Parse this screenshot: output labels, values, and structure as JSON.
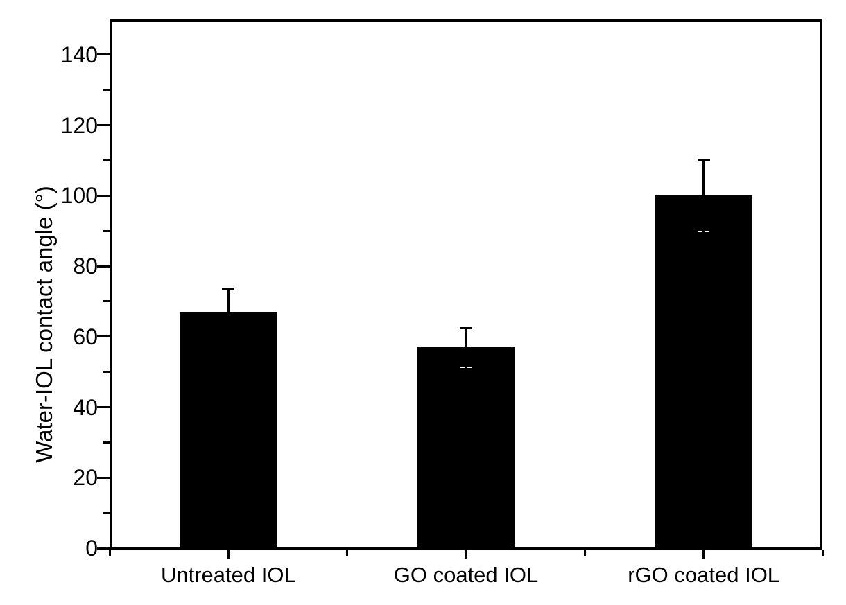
{
  "figure": {
    "background_color": "#ffffff",
    "foreground_color": "#000000"
  },
  "chart_data": {
    "type": "bar",
    "title": "",
    "xlabel": "",
    "ylabel": "Water-IOL contact angle (°)",
    "categories": [
      "Untreated IOL",
      "GO coated IOL",
      "rGO coated IOL"
    ],
    "series": [
      {
        "name": "Water-IOL contact angle",
        "values": [
          67,
          57,
          100
        ],
        "errors_plus": [
          6.7,
          5.4,
          10
        ]
      }
    ],
    "lower_error_cap_marks": [
      null,
      51.6,
      90
    ],
    "ylim": [
      0,
      150
    ],
    "ytick_major_step": 20,
    "ytick_minor_step": 10,
    "ytick_labels": [
      "0",
      "20",
      "40",
      "60",
      "80",
      "100",
      "120",
      "140"
    ],
    "bar_color": "#000000",
    "axis_color": "#000000",
    "error_bar_color": "#000000",
    "lower_cap_mark_color": "#ffffff",
    "grid": false,
    "legend": "none"
  }
}
